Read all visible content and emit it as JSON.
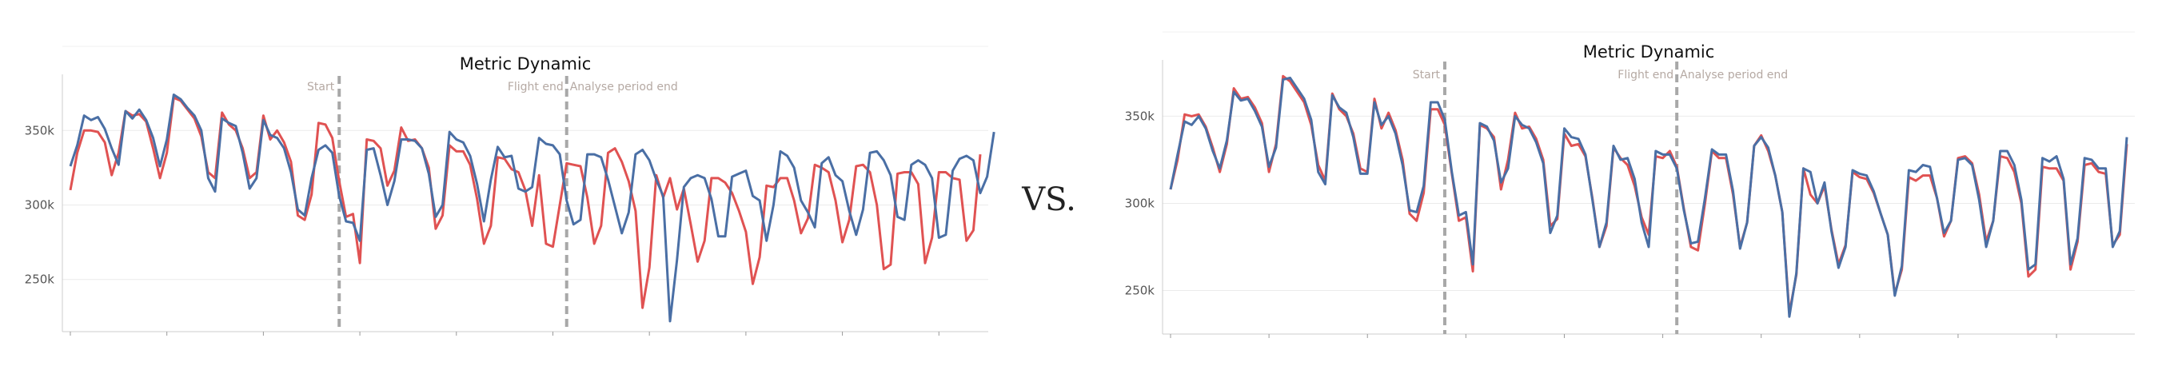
{
  "vs_label": "VS.",
  "colors": {
    "series_red": "#e05252",
    "series_blue": "#4a6fa5",
    "marker": "#a8a8a8",
    "annotation": "#b5a9a3",
    "grid": "#ebebeb"
  },
  "chart_data": [
    {
      "type": "line",
      "title": "Metric Dynamic",
      "xlabel": "",
      "ylabel": "",
      "ylim": [
        215000,
        385000
      ],
      "yticks": [
        250000,
        300000,
        350000
      ],
      "ytick_labels": [
        "250k",
        "300k",
        "350k"
      ],
      "grid": true,
      "markers": [
        {
          "label": "Start",
          "x": 39
        },
        {
          "label": "Flight end",
          "x": 72
        },
        {
          "label": "Analyse period end",
          "x": 72
        }
      ],
      "series": [
        {
          "color": "#e05252",
          "values": [
            310000,
            335000,
            350000,
            350000,
            349000,
            342000,
            320000,
            335000,
            363000,
            360000,
            361000,
            356000,
            338000,
            318000,
            335000,
            372000,
            370000,
            364000,
            358000,
            346000,
            322000,
            318000,
            362000,
            354000,
            350000,
            338000,
            318000,
            322000,
            360000,
            344000,
            350000,
            342000,
            329000,
            293000,
            290000,
            307000,
            355000,
            354000,
            345000,
            316000,
            292000,
            294000,
            261000,
            344000,
            343000,
            338000,
            313000,
            323000,
            352000,
            343000,
            344000,
            338000,
            325000,
            284000,
            293000,
            340000,
            336000,
            336000,
            327000,
            304000,
            274000,
            286000,
            332000,
            331000,
            324000,
            322000,
            310000,
            286000,
            320000,
            274000,
            272000,
            300000,
            328000,
            327000,
            326000,
            305000,
            274000,
            286000,
            335000,
            338000,
            329000,
            316000,
            296000,
            231000,
            258000,
            320000,
            305000,
            318000,
            297000,
            311000,
            287000,
            262000,
            276000,
            318000,
            318000,
            315000,
            308000,
            296000,
            282000,
            247000,
            265000,
            313000,
            312000,
            318000,
            318000,
            303000,
            281000,
            291000,
            327000,
            325000,
            322000,
            303000,
            275000,
            290000,
            326000,
            327000,
            322000,
            300000,
            257000,
            260000,
            321000,
            322000,
            322000,
            314000,
            261000,
            278000,
            322000,
            322000,
            318000,
            317000,
            276000,
            283000,
            334000
          ],
          "y_scale_note": ""
        },
        {
          "color": "#4a6fa5",
          "values": [
            326000,
            340000,
            360000,
            357000,
            359000,
            351000,
            338000,
            327000,
            363000,
            358000,
            364000,
            357000,
            345000,
            326000,
            344000,
            374000,
            371000,
            365000,
            360000,
            350000,
            318000,
            309000,
            358000,
            355000,
            353000,
            335000,
            311000,
            318000,
            357000,
            347000,
            345000,
            338000,
            322000,
            297000,
            293000,
            318000,
            337000,
            340000,
            335000,
            306000,
            289000,
            288000,
            276000,
            337000,
            338000,
            320000,
            300000,
            316000,
            344000,
            344000,
            343000,
            338000,
            321000,
            292000,
            300000,
            349000,
            344000,
            342000,
            333000,
            314000,
            289000,
            317000,
            339000,
            332000,
            333000,
            311000,
            309000,
            312000,
            345000,
            341000,
            340000,
            334000,
            303000,
            287000,
            290000,
            334000,
            334000,
            332000,
            317000,
            299000,
            281000,
            295000,
            334000,
            337000,
            330000,
            317000,
            306000,
            222000,
            263000,
            312000,
            318000,
            320000,
            318000,
            304000,
            279000,
            279000,
            319000,
            321000,
            323000,
            306000,
            303000,
            276000,
            300000,
            336000,
            333000,
            325000,
            303000,
            295000,
            285000,
            328000,
            332000,
            320000,
            316000,
            296000,
            280000,
            297000,
            335000,
            336000,
            330000,
            320000,
            292000,
            290000,
            327000,
            330000,
            327000,
            318000,
            278000,
            280000,
            323000,
            331000,
            333000,
            330000,
            308000,
            319000,
            349000
          ]
        }
      ]
    },
    {
      "type": "line",
      "title": "Metric Dynamic",
      "xlabel": "",
      "ylabel": "",
      "ylim": [
        225000,
        380000
      ],
      "yticks": [
        250000,
        300000,
        350000
      ],
      "ytick_labels": [
        "250k",
        "300k",
        "350k"
      ],
      "grid": true,
      "markers": [
        {
          "label": "Start",
          "x": 39
        },
        {
          "label": "Flight end",
          "x": 72
        },
        {
          "label": "Analyse period end",
          "x": 72
        }
      ],
      "series": [
        {
          "color": "#e05252",
          "values": [
            308000,
            325000,
            351000,
            350000,
            351000,
            344000,
            332000,
            318000,
            334000,
            366000,
            360000,
            361000,
            355000,
            346000,
            318000,
            334000,
            373000,
            370000,
            364000,
            358000,
            345000,
            322000,
            313000,
            363000,
            354000,
            350000,
            340000,
            320000,
            318000,
            360000,
            343000,
            352000,
            342000,
            325000,
            294000,
            290000,
            306000,
            354000,
            354000,
            345000,
            317000,
            290000,
            292000,
            261000,
            345000,
            343000,
            338000,
            308000,
            325000,
            352000,
            343000,
            344000,
            337000,
            325000,
            287000,
            291000,
            340000,
            333000,
            334000,
            327000,
            303000,
            275000,
            287000,
            332000,
            326000,
            322000,
            310000,
            292000,
            282000,
            327000,
            326000,
            330000,
            321000,
            297000,
            275000,
            273000,
            300000,
            330000,
            326000,
            326000,
            305000,
            275000,
            289000,
            333000,
            339000,
            330000,
            316000,
            295000,
            237000,
            259000,
            320000,
            305000,
            300000,
            310000,
            285000,
            265000,
            276000,
            318000,
            315000,
            314000,
            306000,
            294000,
            282000,
            248000,
            262000,
            315000,
            313000,
            316000,
            316000,
            303000,
            281000,
            290000,
            326000,
            327000,
            323000,
            305000,
            278000,
            290000,
            327000,
            326000,
            318000,
            300000,
            258000,
            262000,
            321000,
            320000,
            320000,
            313000,
            262000,
            278000,
            322000,
            323000,
            318000,
            317000,
            276000,
            282000,
            334000
          ],
          "y_scale_note": ""
        },
        {
          "color": "#4a6fa5",
          "values": [
            308000,
            328000,
            347000,
            345000,
            350000,
            343000,
            330000,
            320000,
            336000,
            364000,
            359000,
            360000,
            353000,
            344000,
            321000,
            332000,
            371000,
            372000,
            366000,
            360000,
            348000,
            318000,
            311000,
            362000,
            355000,
            352000,
            338000,
            317000,
            317000,
            358000,
            345000,
            350000,
            340000,
            322000,
            296000,
            295000,
            310000,
            358000,
            358000,
            348000,
            318000,
            293000,
            295000,
            265000,
            346000,
            344000,
            336000,
            312000,
            320000,
            350000,
            345000,
            343000,
            335000,
            323000,
            283000,
            293000,
            343000,
            338000,
            337000,
            328000,
            302000,
            275000,
            289000,
            333000,
            325000,
            326000,
            314000,
            289000,
            275000,
            330000,
            328000,
            328000,
            320000,
            296000,
            277000,
            278000,
            303000,
            331000,
            328000,
            328000,
            307000,
            274000,
            289000,
            333000,
            338000,
            332000,
            316000,
            295000,
            235000,
            260000,
            320000,
            318000,
            300000,
            312000,
            284000,
            263000,
            275000,
            319000,
            317000,
            316000,
            307000,
            294000,
            282000,
            247000,
            264000,
            319000,
            318000,
            322000,
            321000,
            303000,
            283000,
            290000,
            325000,
            326000,
            322000,
            302000,
            275000,
            290000,
            330000,
            330000,
            322000,
            302000,
            262000,
            265000,
            326000,
            324000,
            327000,
            314000,
            265000,
            280000,
            326000,
            325000,
            320000,
            320000,
            275000,
            284000,
            338000
          ],
          "y_scale_note": ""
        }
      ]
    }
  ]
}
